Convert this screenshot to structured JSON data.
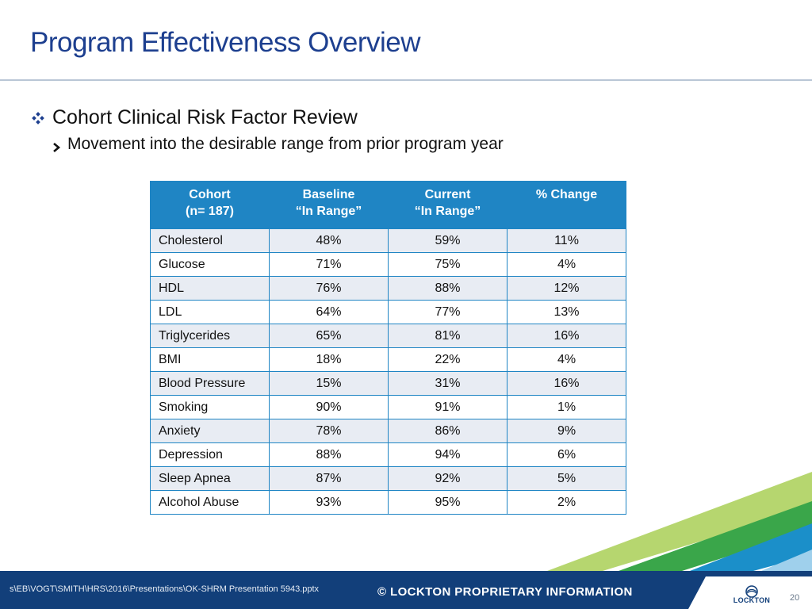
{
  "slide": {
    "title": "Program Effectiveness Overview",
    "bullet_l1": "Cohort Clinical Risk Factor Review",
    "bullet_l2": "Movement into the desirable range from prior program year",
    "bullet_l1_icon": "diamond-bullet-icon",
    "bullet_l2_icon": "chevron-right-icon"
  },
  "table": {
    "headers": [
      {
        "line1": "Cohort",
        "line2": "(n= 187)"
      },
      {
        "line1": "Baseline",
        "line2": "“In Range”"
      },
      {
        "line1": "Current",
        "line2": "“In Range”"
      },
      {
        "line1": "% Change",
        "line2": ""
      }
    ],
    "rows": [
      [
        "Cholesterol",
        "48%",
        "59%",
        "11%"
      ],
      [
        "Glucose",
        "71%",
        "75%",
        "4%"
      ],
      [
        "HDL",
        "76%",
        "88%",
        "12%"
      ],
      [
        "LDL",
        "64%",
        "77%",
        "13%"
      ],
      [
        "Triglycerides",
        "65%",
        "81%",
        "16%"
      ],
      [
        "BMI",
        "18%",
        "22%",
        "4%"
      ],
      [
        "Blood Pressure",
        "15%",
        "31%",
        "16%"
      ],
      [
        "Smoking",
        "90%",
        "91%",
        "1%"
      ],
      [
        "Anxiety",
        "78%",
        "86%",
        "9%"
      ],
      [
        "Depression",
        "88%",
        "94%",
        "6%"
      ],
      [
        "Sleep Apnea",
        "87%",
        "92%",
        "5%"
      ],
      [
        "Alcohol Abuse",
        "93%",
        "95%",
        "2%"
      ]
    ]
  },
  "footer": {
    "file_path": "s\\EB\\VOGT\\SMITH\\HRS\\2016\\Presentations\\OK-SHRM Presentation 5943.pptx",
    "proprietary": "© LOCKTON PROPRIETARY INFORMATION",
    "logo_text": "LOCKTON",
    "page_number": "20"
  },
  "colors": {
    "title": "#1d3f8f",
    "header_bg": "#1f85c4",
    "row_alt": "#e8ecf3",
    "footer_bg": "#123f7a",
    "stripe_green": "#3aa64a",
    "stripe_lightgreen": "#a9cf56",
    "stripe_blue": "#1b8fc9"
  }
}
